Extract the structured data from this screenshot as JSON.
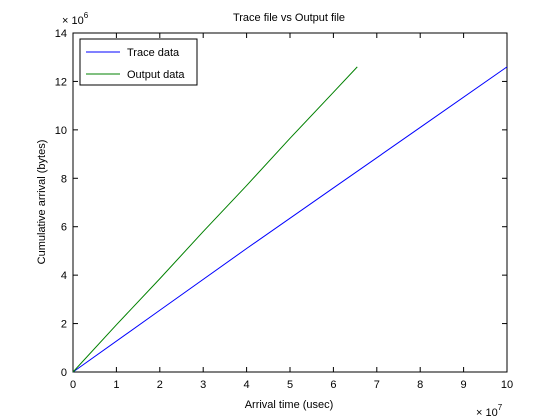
{
  "chart_data": {
    "type": "line",
    "title": "Trace file vs Output file",
    "xlabel": "Arrival time (usec)",
    "ylabel": "Cumulative arrival (bytes)",
    "x_multiplier": {
      "base": "× 10",
      "exponent": "7"
    },
    "y_multiplier": {
      "base": "× 10",
      "exponent": "6"
    },
    "xlim": [
      0,
      10
    ],
    "ylim": [
      0,
      14
    ],
    "x_ticks": [
      0,
      1,
      2,
      3,
      4,
      5,
      6,
      7,
      8,
      9,
      10
    ],
    "y_ticks": [
      0,
      2,
      4,
      6,
      8,
      10,
      12,
      14
    ],
    "grid": false,
    "legend_position": "top-left",
    "series": [
      {
        "name": "Trace data",
        "color": "#0000ff",
        "x": [
          0,
          2,
          4,
          6,
          8,
          10
        ],
        "y": [
          0,
          2.55,
          5.1,
          7.6,
          10.1,
          12.6
        ]
      },
      {
        "name": "Output data",
        "color": "#008000",
        "x": [
          0,
          1,
          2,
          3,
          4,
          5,
          6,
          6.55
        ],
        "y": [
          0,
          1.95,
          3.85,
          5.8,
          7.7,
          9.65,
          11.55,
          12.6
        ]
      }
    ]
  }
}
